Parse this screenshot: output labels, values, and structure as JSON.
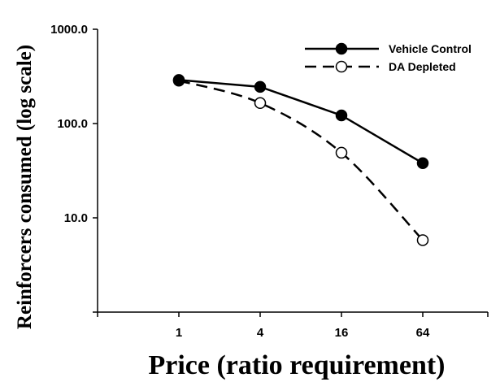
{
  "chart_data": {
    "type": "line",
    "title": "",
    "xlabel": "Price (ratio requirement)",
    "ylabel": "Reinforcers consumed (log scale)",
    "x_scale": "log2",
    "y_scale": "log10",
    "x_ticks": [
      "1",
      "4",
      "16",
      "64"
    ],
    "y_ticks": [
      "10.0",
      "100.0",
      "1000.0"
    ],
    "x": [
      1,
      4,
      16,
      64
    ],
    "ylim": [
      1,
      1000
    ],
    "grid": false,
    "legend_position": "top-right",
    "series": [
      {
        "name": "Vehicle Control",
        "values": [
          290,
          245,
          122,
          38
        ],
        "line_style": "solid",
        "marker": "filled-circle",
        "color": "#000000"
      },
      {
        "name": "DA Depleted",
        "values": [
          285,
          165,
          49,
          5.8
        ],
        "line_style": "dashed",
        "marker": "open-circle",
        "color": "#000000"
      }
    ]
  }
}
